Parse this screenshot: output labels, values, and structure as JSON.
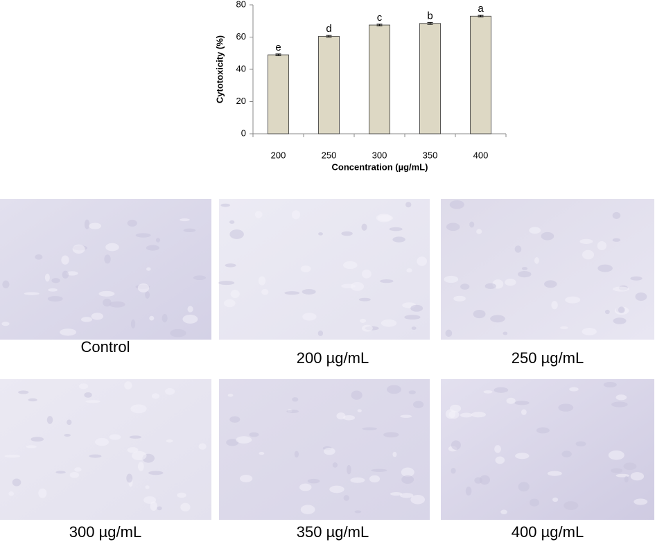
{
  "chart_data": {
    "type": "bar",
    "categories": [
      "200",
      "250",
      "300",
      "350",
      "400"
    ],
    "values": [
      49,
      60.5,
      67.5,
      68.5,
      73
    ],
    "errors": [
      0.5,
      0.5,
      0.5,
      0.6,
      0.5
    ],
    "annotations": [
      "e",
      "d",
      "c",
      "b",
      "a"
    ],
    "color": "#ddd8c4",
    "xlabel": "Concentration (µg/mL)",
    "ylabel": "Cytotoxicity (%)",
    "ylim": [
      0,
      80
    ],
    "yticks": [
      0,
      20,
      40,
      60,
      80
    ],
    "grid": false
  },
  "images": [
    {
      "caption": "Control"
    },
    {
      "caption": "200 µg/mL"
    },
    {
      "caption": "250 µg/mL"
    },
    {
      "caption": "300 µg/mL"
    },
    {
      "caption": "350 µg/mL"
    },
    {
      "caption": "400 µg/mL"
    }
  ]
}
